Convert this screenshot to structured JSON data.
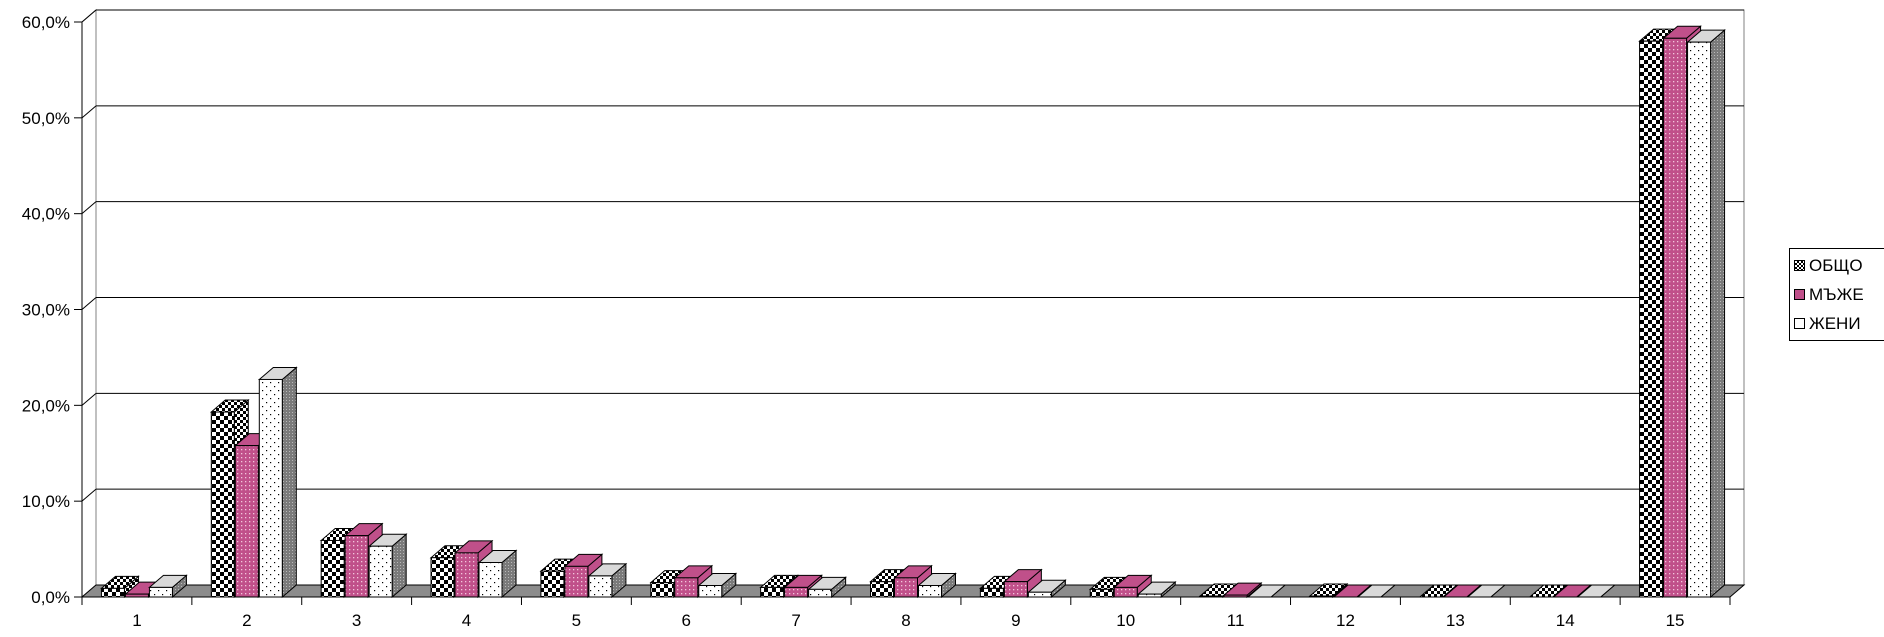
{
  "chart_data": {
    "type": "bar",
    "title": "",
    "xlabel": "",
    "ylabel": "",
    "categories": [
      "1",
      "2",
      "3",
      "4",
      "5",
      "6",
      "7",
      "8",
      "9",
      "10",
      "11",
      "12",
      "13",
      "14",
      "15"
    ],
    "ylim": [
      0,
      60
    ],
    "yticks": [
      "0,0%",
      "10,0%",
      "20,0%",
      "30,0%",
      "40,0%",
      "50,0%",
      "60,0%"
    ],
    "grid": true,
    "legend_position": "right",
    "series": [
      {
        "name": "ОБЩО",
        "color": "#000000",
        "pattern": "checker",
        "values": [
          0.9,
          19.3,
          5.9,
          4.1,
          2.7,
          1.5,
          1.0,
          1.6,
          0.9,
          0.8,
          0.1,
          0.1,
          0.0,
          0.0,
          58.0
        ]
      },
      {
        "name": "МЪЖЕ",
        "color": "#c0508a",
        "pattern": "dots-pink",
        "values": [
          0.3,
          15.8,
          6.4,
          4.6,
          3.2,
          2.0,
          1.0,
          2.0,
          1.6,
          1.0,
          0.2,
          0.0,
          0.0,
          0.0,
          58.3
        ]
      },
      {
        "name": "ЖЕНИ",
        "color": "#ffffff",
        "pattern": "sparse-dots",
        "values": [
          1.0,
          22.7,
          5.3,
          3.6,
          2.2,
          1.2,
          0.8,
          1.2,
          0.5,
          0.3,
          0.0,
          0.0,
          0.0,
          0.0,
          57.9
        ]
      }
    ]
  }
}
